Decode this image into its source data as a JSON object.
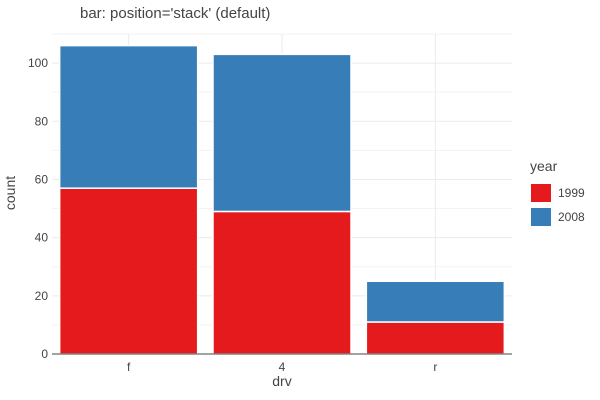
{
  "chart_data": {
    "type": "bar",
    "stacked": true,
    "title": "bar: position='stack' (default)",
    "xlabel": "drv",
    "ylabel": "count",
    "categories": [
      "f",
      "4",
      "r"
    ],
    "series": [
      {
        "name": "1999",
        "values": [
          57,
          49,
          11
        ],
        "color": "#e41a1c"
      },
      {
        "name": "2008",
        "values": [
          49,
          54,
          14
        ],
        "color": "#377eb8"
      }
    ],
    "ylim": [
      0,
      110
    ],
    "yticks": [
      0,
      20,
      40,
      60,
      80,
      100
    ],
    "grid": true,
    "legend": {
      "title": "year",
      "placement": "right"
    }
  }
}
